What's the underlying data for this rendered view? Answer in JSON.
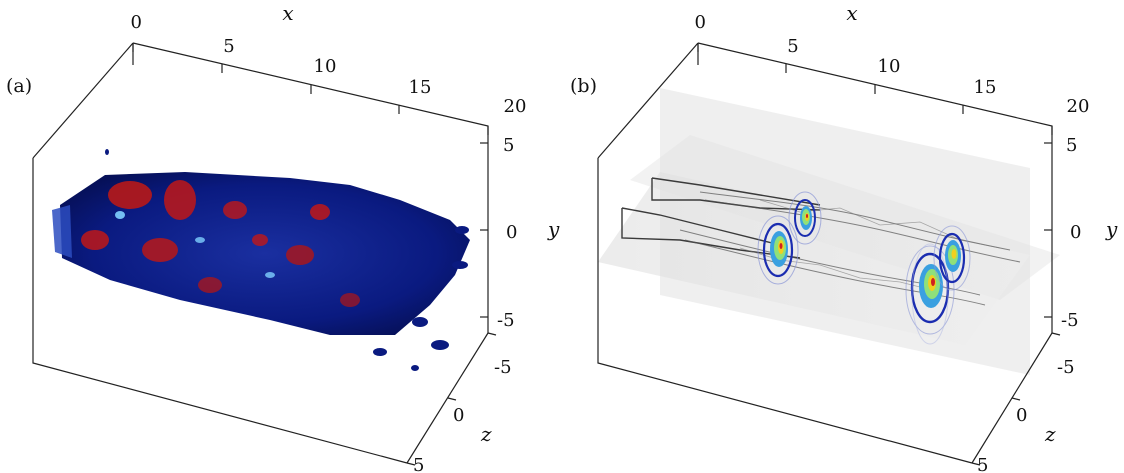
{
  "panels": [
    {
      "label": "(a)",
      "x_axis": {
        "label": "x",
        "ticks": [
          "0",
          "5",
          "10",
          "15",
          "20"
        ]
      },
      "y_axis": {
        "label": "y",
        "ticks": [
          "5",
          "0",
          "-5"
        ]
      },
      "z_axis": {
        "label": "z",
        "ticks": [
          "-5",
          "0",
          "5"
        ]
      },
      "content": "3D iso-surfaces of a turbulent wake",
      "colors": {
        "primary_surface": "#0a1a80",
        "secondary_surface": "#c01818",
        "highlight": "#5fc0ff"
      }
    },
    {
      "label": "(b)",
      "x_axis": {
        "label": "x",
        "ticks": [
          "0",
          "5",
          "10",
          "15",
          "20"
        ]
      },
      "y_axis": {
        "label": "y",
        "ticks": [
          "5",
          "0",
          "-5"
        ]
      },
      "z_axis": {
        "label": "z",
        "ticks": [
          "-5",
          "0",
          "5"
        ]
      },
      "content": "Gray-scale slices with colored contour lines",
      "colors": {
        "slice": "#e9e9e9",
        "contour_outer": "#1b2db0",
        "contour_inner": "#d02020",
        "contour_mid": "#ffd21e"
      }
    }
  ]
}
